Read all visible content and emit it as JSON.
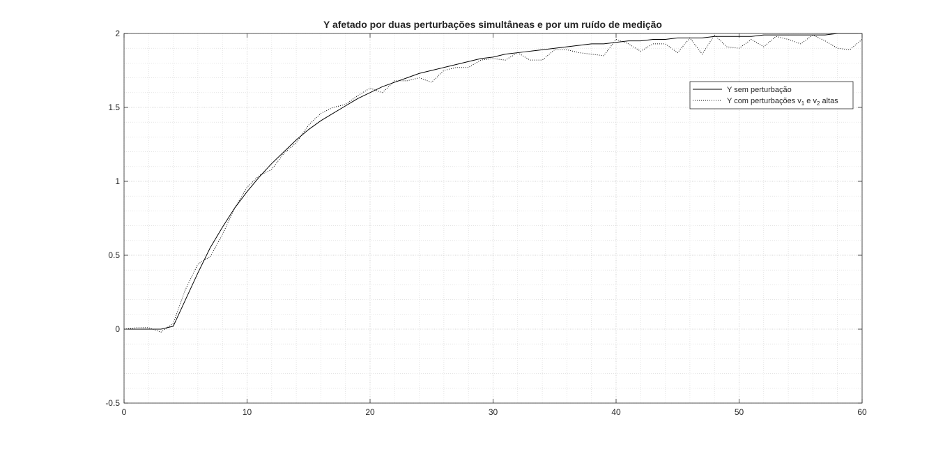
{
  "chart_data": {
    "type": "line",
    "title": "Y afetado por duas perturbações simultâneas e por um ruído de medição",
    "xlabel": "",
    "ylabel": "",
    "xlim": [
      0,
      60
    ],
    "ylim": [
      -0.5,
      2
    ],
    "xticks": [
      0,
      10,
      20,
      30,
      40,
      50,
      60
    ],
    "xtick_labels": [
      "0",
      "10",
      "20",
      "30",
      "40",
      "50",
      "60"
    ],
    "yticks": [
      -0.5,
      0,
      0.5,
      1,
      1.5,
      2
    ],
    "ytick_labels": [
      "-0.5",
      "0",
      "0.5",
      "1",
      "1.5",
      "2"
    ],
    "grid": "on (major and minor)",
    "legend_position": "top-right",
    "series": [
      {
        "name": "Y sem perturbação",
        "line_style": "solid",
        "color": "#000000",
        "x": [
          0,
          1,
          2,
          3,
          4,
          5,
          6,
          7,
          8,
          9,
          10,
          11,
          12,
          13,
          14,
          15,
          16,
          17,
          18,
          19,
          20,
          21,
          22,
          23,
          24,
          25,
          26,
          27,
          28,
          29,
          30,
          31,
          32,
          33,
          34,
          35,
          36,
          37,
          38,
          39,
          40,
          41,
          42,
          43,
          44,
          45,
          46,
          47,
          48,
          49,
          50,
          51,
          52,
          53,
          54,
          55,
          56,
          57,
          58,
          59,
          60
        ],
        "y": [
          0,
          0,
          0,
          0,
          0.02,
          0.2,
          0.38,
          0.55,
          0.69,
          0.82,
          0.93,
          1.03,
          1.12,
          1.2,
          1.28,
          1.35,
          1.41,
          1.46,
          1.51,
          1.56,
          1.6,
          1.64,
          1.67,
          1.7,
          1.73,
          1.75,
          1.77,
          1.79,
          1.81,
          1.83,
          1.84,
          1.86,
          1.87,
          1.88,
          1.89,
          1.9,
          1.91,
          1.92,
          1.93,
          1.93,
          1.94,
          1.95,
          1.95,
          1.96,
          1.96,
          1.97,
          1.97,
          1.97,
          1.98,
          1.98,
          1.98,
          1.98,
          1.99,
          1.99,
          1.99,
          1.99,
          1.99,
          1.99,
          2,
          2,
          2
        ]
      },
      {
        "name": "Y com perturbações v1 e v2 altas",
        "line_style": "dotted",
        "color": "#000000",
        "x": [
          0,
          1,
          2,
          3,
          4,
          5,
          6,
          7,
          8,
          9,
          10,
          11,
          12,
          13,
          14,
          15,
          16,
          17,
          18,
          19,
          20,
          21,
          22,
          23,
          24,
          25,
          26,
          27,
          28,
          29,
          30,
          31,
          32,
          33,
          34,
          35,
          36,
          37,
          38,
          39,
          40,
          41,
          42,
          43,
          44,
          45,
          46,
          47,
          48,
          49,
          50,
          51,
          52,
          53,
          54,
          55,
          56,
          57,
          58,
          59,
          60
        ],
        "y": [
          0,
          0.01,
          0.01,
          -0.02,
          0.04,
          0.27,
          0.44,
          0.49,
          0.64,
          0.82,
          0.96,
          1.04,
          1.08,
          1.19,
          1.26,
          1.38,
          1.46,
          1.5,
          1.52,
          1.58,
          1.63,
          1.6,
          1.68,
          1.68,
          1.7,
          1.67,
          1.75,
          1.77,
          1.77,
          1.82,
          1.83,
          1.82,
          1.87,
          1.82,
          1.82,
          1.89,
          1.89,
          1.87,
          1.86,
          1.85,
          1.96,
          1.93,
          1.88,
          1.93,
          1.93,
          1.87,
          1.97,
          1.86,
          1.99,
          1.91,
          1.9,
          1.96,
          1.91,
          1.98,
          1.96,
          1.93,
          1.99,
          1.95,
          1.9,
          1.89,
          1.96
        ]
      }
    ]
  },
  "legend": {
    "entry1": "Y sem perturbação",
    "entry2_pre": "Y com perturbações v",
    "entry2_sub1": "1",
    "entry2_mid": " e v",
    "entry2_sub2": "2",
    "entry2_post": " altas"
  }
}
